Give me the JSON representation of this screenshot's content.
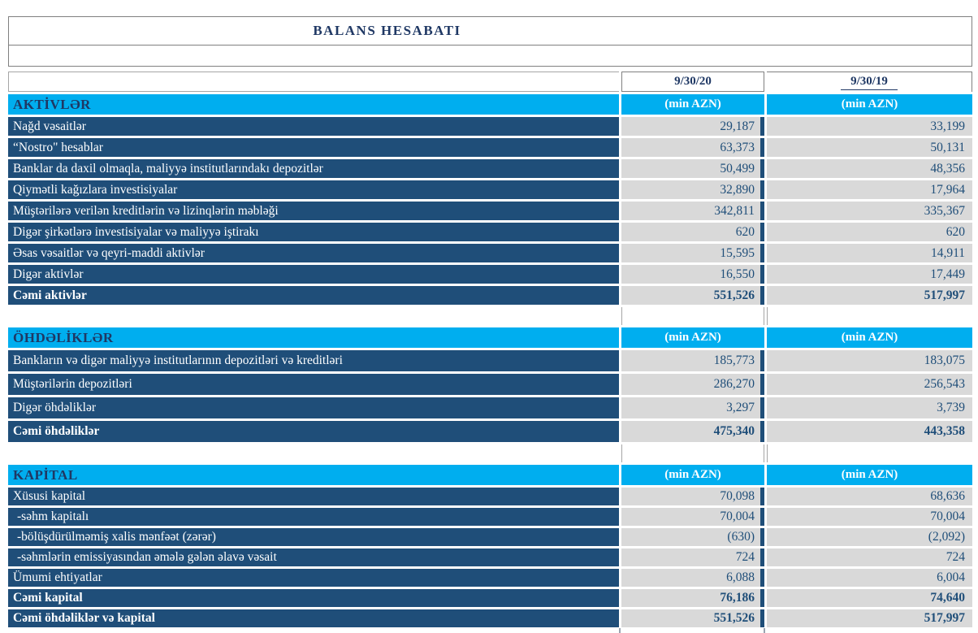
{
  "title": "BALANS HESABATI",
  "columns": {
    "col1": "9/30/20",
    "col2": "9/30/19",
    "unit": "(min AZN)"
  },
  "colors": {
    "cyan_header": "#00AEEF",
    "navy_row": "#1F4E79",
    "value_cell_gray": "#D9D9D9",
    "heading_text": "#1F3864",
    "value_text": "#1F4E79",
    "row_text": "#FFFFFF"
  },
  "sections": [
    {
      "name": "AKTİVLƏR",
      "rows": [
        {
          "label": "Nağd vəsaitlər",
          "v1": "29,187",
          "v2": "33,199"
        },
        {
          "label": "“Nostro\" hesablar",
          "v1": "63,373",
          "v2": "50,131"
        },
        {
          "label": "Banklar da daxil olmaqla, maliyyə institutlarındakı depozitlər",
          "v1": "50,499",
          "v2": "48,356"
        },
        {
          "label": "Qiymətli kağızlara investisiyalar",
          "v1": "32,890",
          "v2": "17,964"
        },
        {
          "label": "Müştərilərə verilən kreditlərin və lizinqlərin məbləği",
          "v1": "342,811",
          "v2": "335,367"
        },
        {
          "label": "Digər  şirkətlərə  investisiyalar və maliyyə iştirakı",
          "v1": "620",
          "v2": "620"
        },
        {
          "label": "Əsas vəsaitlər və qeyri-maddi aktivlər",
          "v1": "15,595",
          "v2": "14,911"
        },
        {
          "label": "Digər aktivlər",
          "v1": "16,550",
          "v2": "17,449"
        },
        {
          "label": "Cəmi aktivlər",
          "v1": "551,526",
          "v2": "517,997",
          "bold": true
        }
      ]
    },
    {
      "name": "ÖHDƏLİKLƏR",
      "rows": [
        {
          "label": "Bankların və digər maliyyə institutlarının depozitləri və kreditləri",
          "v1": "185,773",
          "v2": "183,075"
        },
        {
          "label": "Müştərilərin depozitləri",
          "v1": "286,270",
          "v2": "256,543"
        },
        {
          "label": "Digər öhdəliklər",
          "v1": "3,297",
          "v2": "3,739"
        },
        {
          "label": "Cəmi öhdəliklər",
          "v1": "475,340",
          "v2": "443,358",
          "bold": true
        }
      ]
    },
    {
      "name": "KAPİTAL",
      "rows": [
        {
          "label": "Xüsusi kapital",
          "v1": "70,098",
          "v2": "68,636"
        },
        {
          "label": "-səhm kapitalı",
          "v1": "70,004",
          "v2": "70,004",
          "indent": true
        },
        {
          "label": "-bölüşdürülməmiş xalis mənfəət (zərər)",
          "v1": "(630)",
          "v2": "(2,092)",
          "indent": true
        },
        {
          "label": "-səhmlərin emissiyasından əmələ gələn əlavə vəsait",
          "v1": "724",
          "v2": "724",
          "indent": true
        },
        {
          "label": "Ümumi ehtiyatlar",
          "v1": "6,088",
          "v2": "6,004"
        },
        {
          "label": "Cəmi kapital",
          "v1": "76,186",
          "v2": "74,640",
          "bold": true
        },
        {
          "label": "Cəmi öhdəliklər və kapital",
          "v1": "551,526",
          "v2": "517,997",
          "bold": true
        }
      ]
    }
  ]
}
